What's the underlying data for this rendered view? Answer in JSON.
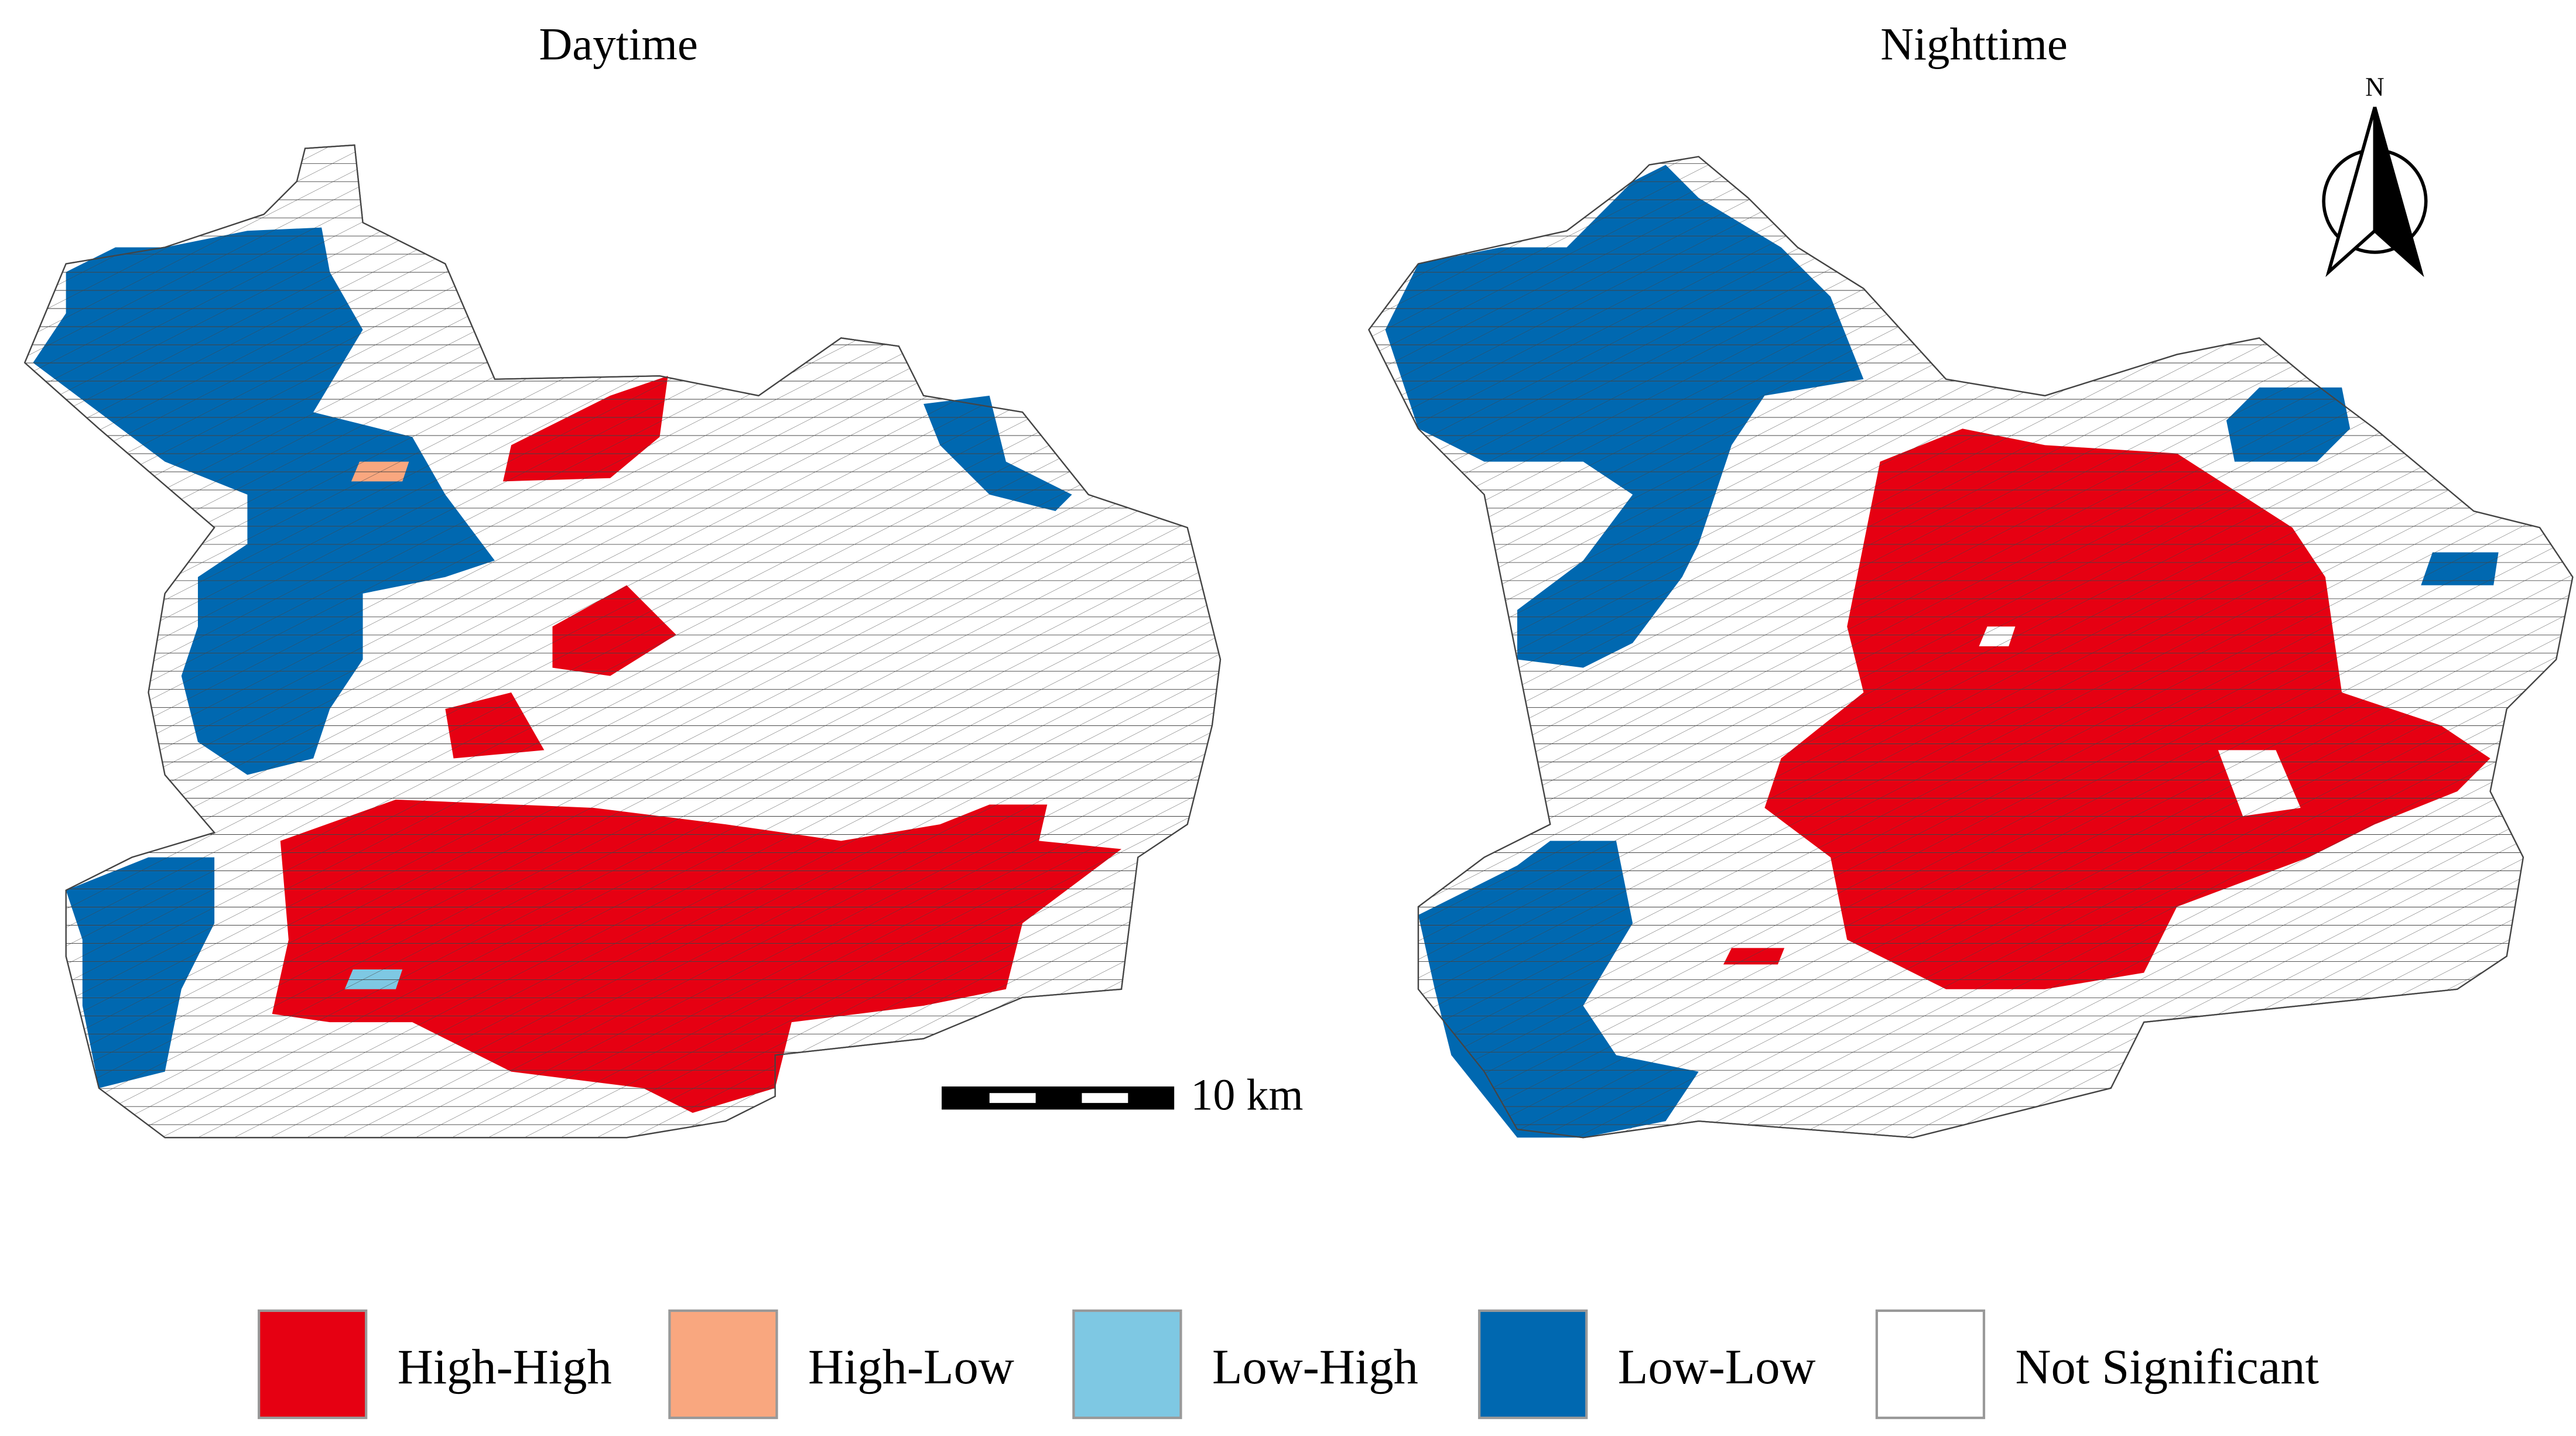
{
  "maps": [
    {
      "title": "Daytime"
    },
    {
      "title": "Nighttime"
    }
  ],
  "scale_bar": {
    "label": "10 km"
  },
  "north_arrow": {
    "label": "N"
  },
  "legend": {
    "items": [
      {
        "label": "High-High",
        "color": "#e60012"
      },
      {
        "label": "High-Low",
        "color": "#f9a77f"
      },
      {
        "label": "Low-High",
        "color": "#7ec8e3"
      },
      {
        "label": "Low-Low",
        "color": "#0068b0"
      },
      {
        "label": "Not Significant",
        "color": "#ffffff"
      }
    ]
  }
}
